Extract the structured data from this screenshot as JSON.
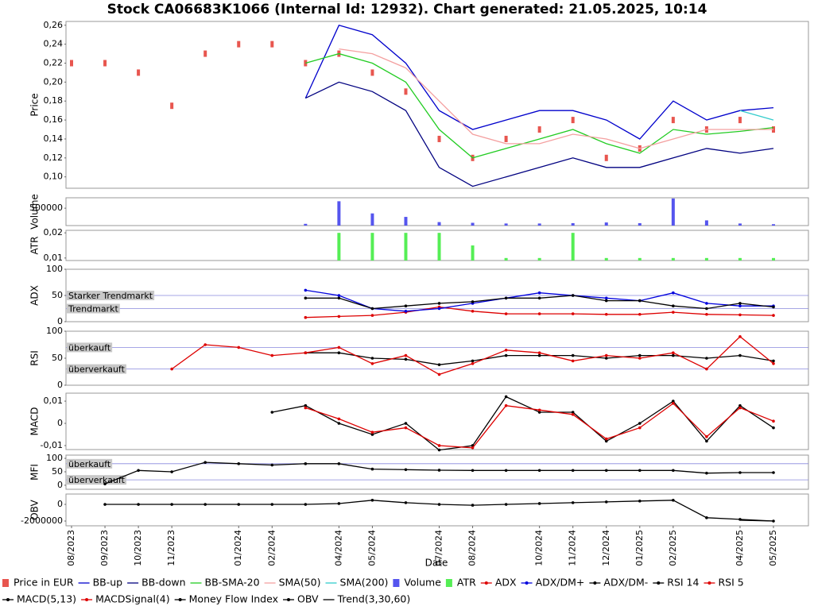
{
  "title": "Stock CA06683K1066 (Internal Id: 12932). Chart generated: 21.05.2025, 10:14",
  "x_axis": {
    "label": "Date",
    "categories": [
      "08/2023",
      "09/2023",
      "10/2023",
      "11/2023",
      null,
      "01/2024",
      "02/2024",
      null,
      "04/2024",
      "05/2024",
      null,
      "07/2024",
      "08/2024",
      null,
      "10/2024",
      "11/2024",
      "12/2024",
      "01/2025",
      "02/2025",
      null,
      "04/2025",
      "05/2025"
    ]
  },
  "chart_data": [
    {
      "type": "line",
      "ylabel": "Price",
      "ylim": [
        0.088,
        0.264
      ],
      "yticks": [
        {
          "value": 0.1,
          "label": "0,10"
        },
        {
          "value": 0.12,
          "label": "0,12"
        },
        {
          "value": 0.14,
          "label": "0,14"
        },
        {
          "value": 0.16,
          "label": "0,16"
        },
        {
          "value": 0.18,
          "label": "0,18"
        },
        {
          "value": 0.2,
          "label": "0,20"
        },
        {
          "value": 0.22,
          "label": "0,22"
        },
        {
          "value": 0.24,
          "label": "0,24"
        },
        {
          "value": 0.26,
          "label": "0,26"
        }
      ],
      "series": [
        {
          "name": "Price in EUR",
          "color": "#e8564f",
          "style": "candle",
          "values": [
            0.22,
            0.22,
            0.21,
            0.175,
            0.23,
            0.24,
            0.24,
            0.22,
            0.23,
            0.21,
            0.19,
            0.14,
            0.12,
            0.14,
            0.15,
            0.16,
            0.12,
            0.13,
            0.16,
            0.15,
            0.16,
            0.15
          ]
        },
        {
          "name": "BB-up",
          "color": "#0000cc",
          "style": "line",
          "values": [
            null,
            null,
            null,
            null,
            null,
            null,
            null,
            0.183,
            0.26,
            0.25,
            0.22,
            0.17,
            0.15,
            0.16,
            0.17,
            0.17,
            0.16,
            0.14,
            0.18,
            0.16,
            0.17,
            0.173
          ]
        },
        {
          "name": "BB-down",
          "color": "#000080",
          "style": "line",
          "values": [
            null,
            null,
            null,
            null,
            null,
            null,
            null,
            0.183,
            0.2,
            0.19,
            0.17,
            0.11,
            0.09,
            0.1,
            0.11,
            0.12,
            0.11,
            0.11,
            0.12,
            0.13,
            0.125,
            0.13
          ]
        },
        {
          "name": "BB-SMA-20",
          "color": "#22cc22",
          "style": "line",
          "values": [
            null,
            null,
            null,
            null,
            null,
            null,
            null,
            0.22,
            0.23,
            0.22,
            0.2,
            0.15,
            0.12,
            0.13,
            0.14,
            0.15,
            0.135,
            0.125,
            0.15,
            0.145,
            0.148,
            0.152
          ]
        },
        {
          "name": "SMA(50)",
          "color": "#f4a0a0",
          "style": "line",
          "values": [
            null,
            null,
            null,
            null,
            null,
            null,
            null,
            null,
            0.235,
            0.23,
            0.215,
            0.18,
            0.145,
            0.135,
            0.135,
            0.145,
            0.14,
            0.13,
            0.14,
            0.15,
            0.15,
            0.15
          ]
        },
        {
          "name": "SMA(200)",
          "color": "#33cccc",
          "style": "line",
          "values": [
            null,
            null,
            null,
            null,
            null,
            null,
            null,
            null,
            null,
            null,
            null,
            null,
            null,
            null,
            null,
            null,
            null,
            null,
            null,
            null,
            0.17,
            0.16
          ]
        }
      ]
    },
    {
      "type": "bar",
      "ylabel": "Volume",
      "ylim": [
        0,
        800000
      ],
      "yticks": [
        500000
      ],
      "series": [
        {
          "name": "Volume",
          "color": "#5555ee",
          "style": "bar",
          "values": [
            0,
            0,
            0,
            0,
            0,
            0,
            0,
            50000,
            700000,
            350000,
            250000,
            100000,
            80000,
            60000,
            60000,
            70000,
            90000,
            70000,
            780000,
            150000,
            60000,
            40000
          ]
        }
      ]
    },
    {
      "type": "bar",
      "ylabel": "ATR",
      "ylim": [
        0.009,
        0.021
      ],
      "yticks": [
        {
          "value": 0.01,
          "label": "0,01"
        },
        {
          "value": 0.02,
          "label": "0,02"
        }
      ],
      "series": [
        {
          "name": "ATR",
          "color": "#55ee55",
          "style": "bar",
          "values": [
            null,
            null,
            null,
            null,
            null,
            null,
            null,
            null,
            0.02,
            0.02,
            0.02,
            0.02,
            0.015,
            0.01,
            0.01,
            0.02,
            0.01,
            0.01,
            0.01,
            0.01,
            0.01,
            0.01
          ]
        }
      ]
    },
    {
      "type": "line",
      "ylabel": "ADX",
      "ylim": [
        0,
        100
      ],
      "yticks": [
        0,
        50,
        100
      ],
      "hlines": [
        {
          "value": 50,
          "label": "Starker Trendmarkt"
        },
        {
          "value": 25,
          "label": "Trendmarkt"
        }
      ],
      "series": [
        {
          "name": "ADX",
          "color": "#dd0000",
          "style": "line-dots",
          "values": [
            null,
            null,
            null,
            null,
            null,
            null,
            null,
            8,
            10,
            12,
            18,
            28,
            20,
            15,
            15,
            15,
            14,
            14,
            18,
            14,
            13,
            12
          ]
        },
        {
          "name": "ADX/DM+",
          "color": "#0000dd",
          "style": "line-dots",
          "values": [
            null,
            null,
            null,
            null,
            null,
            null,
            null,
            60,
            50,
            25,
            20,
            25,
            35,
            45,
            55,
            50,
            45,
            40,
            55,
            35,
            30,
            30
          ]
        },
        {
          "name": "ADX/DM-",
          "color": "#000000",
          "style": "line-dots",
          "values": [
            null,
            null,
            null,
            null,
            null,
            null,
            null,
            45,
            45,
            25,
            30,
            35,
            38,
            45,
            45,
            50,
            40,
            40,
            30,
            25,
            35,
            28
          ]
        }
      ]
    },
    {
      "type": "line",
      "ylabel": "RSI",
      "ylim": [
        0,
        100
      ],
      "yticks": [
        0,
        50,
        100
      ],
      "hlines": [
        {
          "value": 70,
          "label": "überkauft"
        },
        {
          "value": 30,
          "label": "überverkauft"
        }
      ],
      "series": [
        {
          "name": "RSI 14",
          "color": "#000000",
          "style": "line-dots",
          "values": [
            null,
            null,
            null,
            null,
            null,
            null,
            null,
            60,
            60,
            50,
            48,
            38,
            45,
            55,
            55,
            55,
            50,
            55,
            55,
            50,
            55,
            45
          ]
        },
        {
          "name": "RSI 5",
          "color": "#dd0000",
          "style": "line-dots",
          "values": [
            null,
            null,
            null,
            30,
            75,
            70,
            55,
            60,
            70,
            40,
            55,
            20,
            40,
            65,
            60,
            45,
            55,
            50,
            60,
            30,
            90,
            40
          ]
        }
      ]
    },
    {
      "type": "line",
      "ylabel": "MACD",
      "ylim": [
        -0.0118,
        0.0136
      ],
      "yticks": [
        {
          "value": -0.01,
          "label": "-0,01"
        },
        0,
        {
          "value": 0.01,
          "label": "0,01"
        }
      ],
      "series": [
        {
          "name": "MACD(5,13)",
          "color": "#000000",
          "style": "line-dots",
          "values": [
            null,
            null,
            null,
            null,
            null,
            null,
            0.005,
            0.008,
            0,
            -0.005,
            0,
            -0.012,
            -0.01,
            0.012,
            0.005,
            0.005,
            -0.008,
            0,
            0.01,
            -0.008,
            0.008,
            -0.002
          ]
        },
        {
          "name": "MACDSignal(4)",
          "color": "#dd0000",
          "style": "line-dots",
          "values": [
            null,
            null,
            null,
            null,
            null,
            null,
            null,
            0.007,
            0.002,
            -0.004,
            -0.002,
            -0.01,
            -0.011,
            0.008,
            0.006,
            0.004,
            -0.007,
            -0.002,
            0.009,
            -0.006,
            0.007,
            0.001
          ]
        }
      ]
    },
    {
      "type": "line",
      "ylabel": "MFI",
      "ylim": [
        -15,
        112
      ],
      "yticks": [
        0,
        50,
        100
      ],
      "hlines": [
        {
          "value": 80,
          "label": "überkauft"
        },
        {
          "value": 20,
          "label": "überverkauft"
        }
      ],
      "series": [
        {
          "name": "Money Flow Index",
          "color": "#000000",
          "style": "line-dots",
          "values": [
            null,
            5,
            55,
            50,
            85,
            80,
            75,
            80,
            80,
            60,
            58,
            56,
            55,
            55,
            55,
            55,
            55,
            55,
            55,
            45,
            47,
            47
          ]
        }
      ]
    },
    {
      "type": "line",
      "ylabel": "OBV",
      "ylim": [
        -2570000,
        1240000
      ],
      "yticks": [
        -2000000,
        0
      ],
      "series": [
        {
          "name": "OBV",
          "color": "#000000",
          "style": "line-dots",
          "values": [
            null,
            0,
            0,
            0,
            0,
            0,
            0,
            0,
            100000,
            500000,
            200000,
            0,
            -100000,
            0,
            100000,
            200000,
            300000,
            400000,
            500000,
            -1600000,
            -1800000,
            -2000000
          ]
        },
        {
          "name": "Trend(3,30,60)",
          "color": "#000000",
          "style": "line",
          "values": [
            null,
            null,
            null,
            null,
            null,
            null,
            null,
            null,
            null,
            null,
            null,
            null,
            null,
            null,
            null,
            null,
            null,
            null,
            null,
            null,
            -1900000,
            -2000000
          ]
        }
      ]
    }
  ]
}
